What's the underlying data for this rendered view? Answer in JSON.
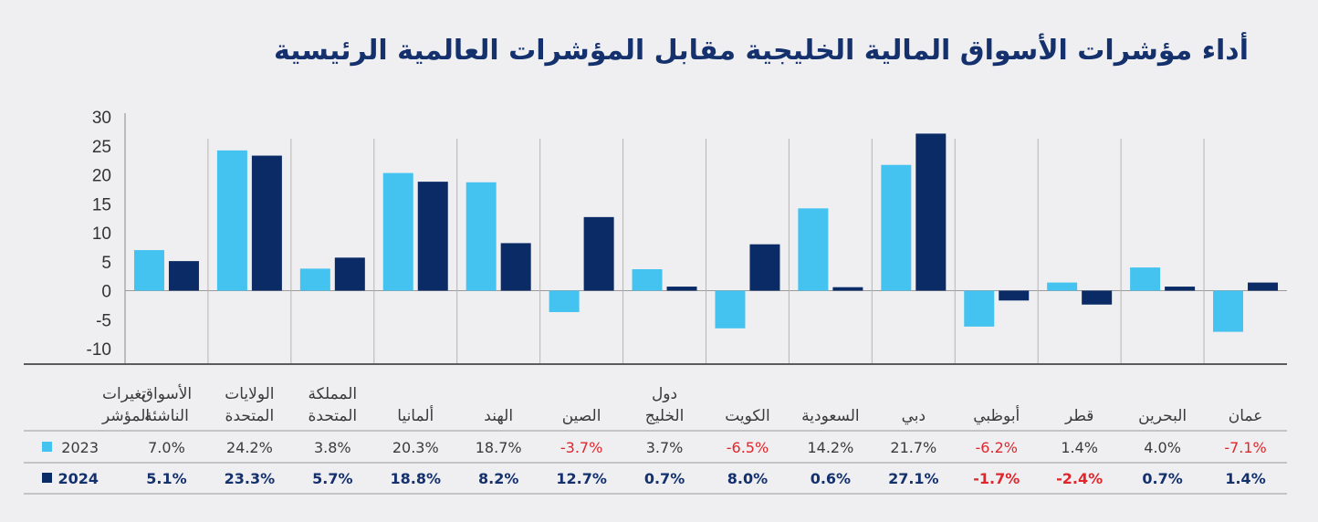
{
  "title": "أداء مؤشرات الأسواق المالية الخليجية مقابل المؤشرات العالمية الرئيسية",
  "table_header": [
    "تغيرات",
    "المؤشر"
  ],
  "colors": {
    "series_2023": "#45c3f0",
    "series_2024": "#0b2b66",
    "negative_text": "#e0262c",
    "title": "#14316e"
  },
  "chart_data": {
    "type": "bar",
    "title": "أداء مؤشرات الأسواق المالية الخليجية مقابل المؤشرات العالمية الرئيسية",
    "xlabel": "",
    "ylabel": "",
    "ylim": [
      -10,
      30
    ],
    "yticks": [
      30,
      25,
      20,
      15,
      10,
      5,
      0,
      -5,
      -10
    ],
    "grid": false,
    "legend": "bottom-left (in table)",
    "categories": [
      [
        "الأسواق",
        "الناشئة"
      ],
      [
        "الولايات",
        "المتحدة"
      ],
      [
        "المملكة",
        "المتحدة"
      ],
      [
        "ألمانيا"
      ],
      [
        "الهند"
      ],
      [
        "الصين"
      ],
      [
        "دول",
        "الخليج"
      ],
      [
        "الكويت"
      ],
      [
        "السعودية"
      ],
      [
        "دبي"
      ],
      [
        "أبوظبي"
      ],
      [
        "قطر"
      ],
      [
        "البحرين"
      ],
      [
        "عمان"
      ]
    ],
    "series": [
      {
        "name": "2023",
        "values": [
          7.0,
          24.2,
          3.8,
          20.3,
          18.7,
          -3.7,
          3.7,
          -6.5,
          14.2,
          21.7,
          -6.2,
          1.4,
          4.0,
          -7.1
        ],
        "labels": [
          "7.0%",
          "24.2%",
          "3.8%",
          "20.3%",
          "18.7%",
          "-3.7%",
          "3.7%",
          "-6.5%",
          "14.2%",
          "21.7%",
          "-6.2%",
          "1.4%",
          "4.0%",
          "-7.1%"
        ]
      },
      {
        "name": "2024",
        "values": [
          5.1,
          23.3,
          5.7,
          18.8,
          8.2,
          12.7,
          0.7,
          8.0,
          0.6,
          27.1,
          -1.7,
          -2.4,
          0.7,
          1.4
        ],
        "labels": [
          "5.1%",
          "23.3%",
          "5.7%",
          "18.8%",
          "8.2%",
          "12.7%",
          "0.7%",
          "8.0%",
          "0.6%",
          "27.1%",
          "-1.7%",
          "-2.4%",
          "0.7%",
          "1.4%"
        ]
      }
    ]
  }
}
